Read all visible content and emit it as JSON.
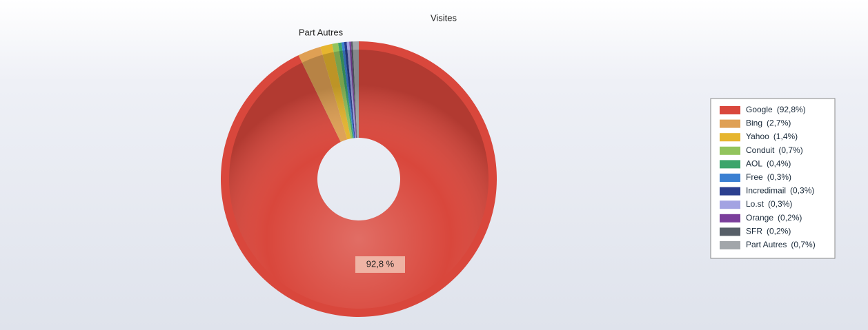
{
  "chart_data": {
    "type": "donut",
    "title": "Visites",
    "categories": [
      "Google",
      "Bing",
      "Yahoo",
      "Conduit",
      "AOL",
      "Free",
      "Incredimail",
      "Lo.st",
      "Orange",
      "SFR",
      "Part Autres"
    ],
    "values": [
      92.8,
      2.7,
      1.4,
      0.7,
      0.4,
      0.3,
      0.3,
      0.3,
      0.2,
      0.2,
      0.7
    ],
    "value_labels": [
      "(92,8%)",
      "(2,7%)",
      "(1,4%)",
      "(0,7%)",
      "(0,4%)",
      "(0,3%)",
      "(0,3%)",
      "(0,3%)",
      "(0,2%)",
      "(0,2%)",
      "(0,7%)"
    ],
    "colors": [
      "#d9473c",
      "#dfa054",
      "#e6b52e",
      "#92c45c",
      "#3ca56b",
      "#3b80d2",
      "#2b3f8f",
      "#a3a3e2",
      "#7b3f9b",
      "#575f68",
      "#a2a6aa"
    ],
    "inner_label": "92,8 %",
    "legend": "right"
  }
}
